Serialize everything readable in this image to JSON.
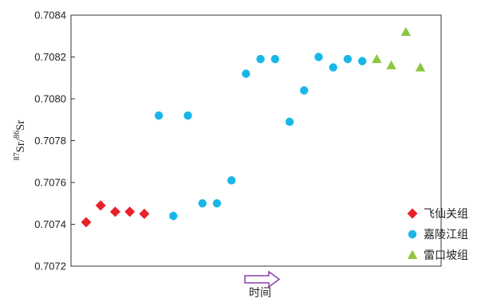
{
  "chart_data": {
    "type": "scatter",
    "title": "",
    "xlabel": "时间",
    "ylabel": {
      "sup1": "87",
      "text1": "Sr/",
      "sup2": "86",
      "text2": "Sr"
    },
    "ylim": [
      0.7072,
      0.7084
    ],
    "yticks": [
      "0.7072",
      "0.7074",
      "0.7076",
      "0.7078",
      "0.7080",
      "0.7082",
      "0.7084"
    ],
    "legend_position": "bottom-right",
    "series": [
      {
        "name": "飞仙关组",
        "marker": "diamond",
        "color": "#e8222a",
        "points": [
          {
            "x": 1,
            "y": 0.70741
          },
          {
            "x": 2,
            "y": 0.70749
          },
          {
            "x": 3,
            "y": 0.70746
          },
          {
            "x": 4,
            "y": 0.70746
          },
          {
            "x": 5,
            "y": 0.70745
          }
        ]
      },
      {
        "name": "嘉陵江组",
        "marker": "circle",
        "color": "#19b7e8",
        "points": [
          {
            "x": 6,
            "y": 0.70792
          },
          {
            "x": 7,
            "y": 0.70744
          },
          {
            "x": 8,
            "y": 0.70792
          },
          {
            "x": 9,
            "y": 0.7075
          },
          {
            "x": 10,
            "y": 0.7075
          },
          {
            "x": 11,
            "y": 0.70761
          },
          {
            "x": 12,
            "y": 0.70812
          },
          {
            "x": 13,
            "y": 0.70819
          },
          {
            "x": 14,
            "y": 0.70819
          },
          {
            "x": 15,
            "y": 0.70789
          },
          {
            "x": 16,
            "y": 0.70804
          },
          {
            "x": 17,
            "y": 0.7082
          },
          {
            "x": 18,
            "y": 0.70815
          },
          {
            "x": 19,
            "y": 0.70819
          },
          {
            "x": 20,
            "y": 0.70818
          }
        ]
      },
      {
        "name": "雷口坡组",
        "marker": "triangle",
        "color": "#8cc63f",
        "points": [
          {
            "x": 21,
            "y": 0.70819
          },
          {
            "x": 22,
            "y": 0.70816
          },
          {
            "x": 23,
            "y": 0.70832
          },
          {
            "x": 24,
            "y": 0.70815
          }
        ]
      }
    ]
  }
}
